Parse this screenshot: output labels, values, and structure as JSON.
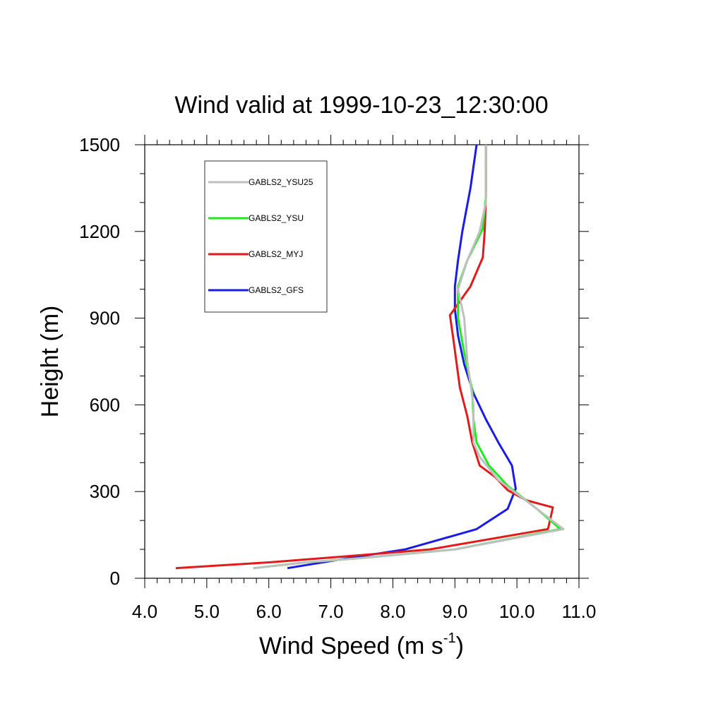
{
  "chart_data": {
    "type": "line",
    "title": "Wind valid at 1999-10-23_12:30:00",
    "xlabel_main": "Wind Speed (m s",
    "xlabel_sup": "-1",
    "xlabel_tail": ")",
    "ylabel": "Height (m)",
    "xlim": [
      4.0,
      11.0
    ],
    "ylim": [
      0,
      1500
    ],
    "xticks": [
      "4.0",
      "5.0",
      "6.0",
      "7.0",
      "8.0",
      "9.0",
      "10.0",
      "11.0"
    ],
    "yticks": [
      "0",
      "300",
      "600",
      "900",
      "1200",
      "1500"
    ],
    "legend_position": "top-left",
    "series": [
      {
        "name": "GABLS2_YSU25",
        "color": "#bfbfbf",
        "x": [
          5.75,
          6.6,
          7.5,
          8.5,
          9.0,
          10.75,
          10.2,
          9.7,
          9.4,
          9.3,
          9.3,
          9.2,
          9.15,
          9.05,
          9.2,
          9.4,
          9.5,
          9.5
        ],
        "y": [
          35,
          55,
          70,
          90,
          100,
          170,
          260,
          340,
          420,
          470,
          600,
          750,
          900,
          1000,
          1100,
          1200,
          1300,
          1500
        ]
      },
      {
        "name": "GABLS2_YSU",
        "color": "#1aeb1a",
        "x": [
          5.75,
          6.6,
          7.5,
          8.5,
          9.0,
          10.7,
          10.35,
          9.85,
          9.55,
          9.35,
          9.3,
          9.28,
          9.15,
          9.05,
          9.05,
          9.2,
          9.45,
          9.5,
          9.5
        ],
        "y": [
          35,
          55,
          70,
          90,
          100,
          170,
          235,
          320,
          390,
          470,
          550,
          650,
          780,
          900,
          1010,
          1100,
          1210,
          1320,
          1500
        ]
      },
      {
        "name": "GABLS2_MYJ",
        "color": "#e31a1a",
        "x": [
          4.5,
          6.0,
          7.2,
          8.6,
          10.5,
          10.58,
          10.15,
          9.85,
          9.65,
          9.4,
          9.28,
          9.2,
          9.08,
          8.98,
          8.92,
          9.25,
          9.45,
          9.48,
          9.5,
          9.5
        ],
        "y": [
          35,
          55,
          75,
          100,
          170,
          245,
          270,
          305,
          350,
          390,
          470,
          560,
          660,
          820,
          910,
          1010,
          1110,
          1200,
          1320,
          1500
        ]
      },
      {
        "name": "GABLS2_GFS",
        "color": "#1a1aeb",
        "x": [
          6.3,
          7.3,
          8.2,
          9.35,
          9.85,
          9.98,
          9.92,
          9.7,
          9.5,
          9.3,
          9.15,
          9.05,
          9.0,
          9.0,
          9.05,
          9.12,
          9.25,
          9.35
        ],
        "y": [
          35,
          70,
          100,
          170,
          240,
          310,
          390,
          470,
          550,
          640,
          740,
          840,
          930,
          1010,
          1100,
          1200,
          1350,
          1500
        ]
      }
    ]
  }
}
